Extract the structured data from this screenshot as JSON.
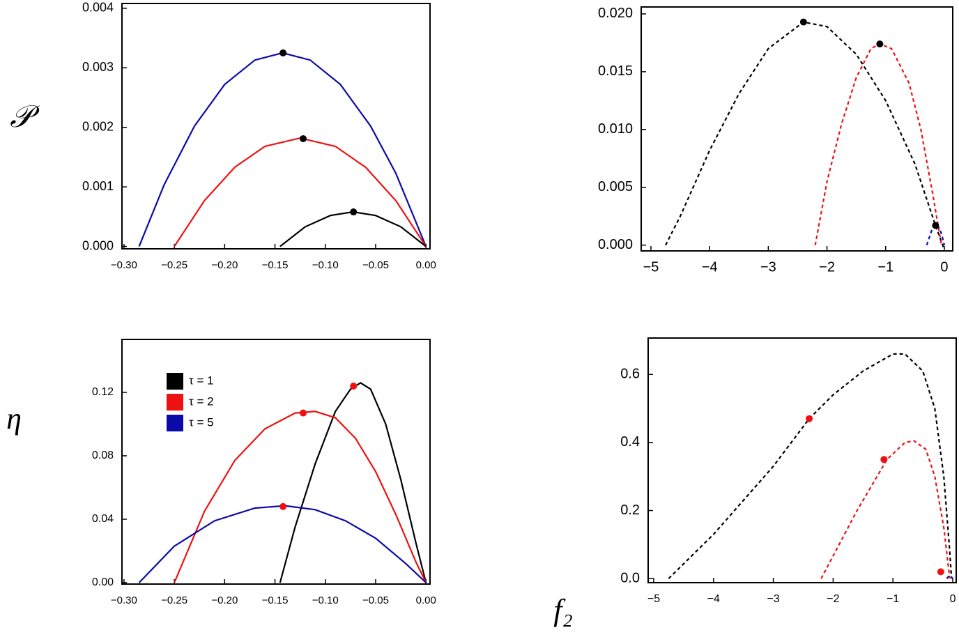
{
  "labels": {
    "y_top": "𝒫",
    "y_bottom": "η",
    "x": "f₂"
  },
  "chart_data": [
    {
      "type": "line",
      "dashed": false,
      "xlim": [
        -0.302,
        0.004
      ],
      "ylim": [
        -4e-05,
        0.00408
      ],
      "xticks": [
        {
          "value": -0.3,
          "label": "−0.30"
        },
        {
          "value": -0.25,
          "label": "−0.25"
        },
        {
          "value": -0.2,
          "label": "−0.20"
        },
        {
          "value": -0.15,
          "label": "−0.15"
        },
        {
          "value": -0.1,
          "label": "−0.10"
        },
        {
          "value": -0.05,
          "label": "−0.05"
        },
        {
          "value": 0,
          "label": "0.00"
        }
      ],
      "yticks": [
        {
          "value": 0,
          "label": "0.000"
        },
        0.001,
        0.002,
        0.003,
        0.004
      ],
      "series": [
        {
          "color": "#0a0aa8",
          "x": [
            -0.285,
            -0.26,
            -0.23,
            -0.2,
            -0.17,
            -0.1425,
            -0.115,
            -0.085,
            -0.055,
            -0.03,
            0
          ],
          "values": [
            0,
            0.00104,
            0.00202,
            0.00272,
            0.00313,
            0.00325,
            0.00313,
            0.00272,
            0.00202,
            0.00123,
            0
          ]
        },
        {
          "color": "#ee1111",
          "x": [
            -0.25,
            -0.22,
            -0.19,
            -0.16,
            -0.125,
            -0.09,
            -0.06,
            -0.03,
            0
          ],
          "values": [
            0,
            0.00077,
            0.00133,
            0.00168,
            0.00182,
            0.00168,
            0.00133,
            0.00077,
            0
          ]
        },
        {
          "color": "#000000",
          "x": [
            -0.145,
            -0.12,
            -0.095,
            -0.0725,
            -0.05,
            -0.025,
            0
          ],
          "values": [
            0,
            0.00033,
            0.00052,
            0.00058,
            0.00052,
            0.00033,
            0
          ]
        }
      ],
      "markers": {
        "color": "#000000",
        "x": [
          -0.142,
          -0.122,
          -0.072
        ],
        "y": [
          0.00325,
          0.00181,
          0.00058
        ]
      }
    },
    {
      "type": "line",
      "dashed": true,
      "xlim": [
        -5.166,
        0.143
      ],
      "ylim": [
        -0.0005,
        0.0206
      ],
      "xticks": [
        {
          "value": -5,
          "label": "−5"
        },
        {
          "value": -4,
          "label": "−4"
        },
        {
          "value": -3,
          "label": "−3"
        },
        {
          "value": -2,
          "label": "−2"
        },
        {
          "value": -1,
          "label": "−1"
        },
        0
      ],
      "yticks": [
        {
          "value": 0,
          "label": "0.000"
        },
        0.005,
        {
          "value": 0.01,
          "label": "0.010"
        },
        0.015,
        {
          "value": 0.02,
          "label": "0.020"
        }
      ],
      "series": [
        {
          "color": "#000000",
          "x": [
            -4.75,
            -4.5,
            -4,
            -3.5,
            -3,
            -2.4,
            -2,
            -1.5,
            -1,
            -0.5,
            -0.15,
            0
          ],
          "values": [
            0,
            0.0025,
            0.0082,
            0.0131,
            0.017,
            0.0193,
            0.0189,
            0.0165,
            0.0125,
            0.007,
            0.0017,
            -0.0004
          ]
        },
        {
          "color": "#ee1111",
          "x": [
            -2.2,
            -2,
            -1.75,
            -1.5,
            -1.25,
            -1.1,
            -0.9,
            -0.6,
            -0.4,
            -0.2,
            -0.05
          ],
          "values": [
            0,
            0.0055,
            0.0105,
            0.0145,
            0.017,
            0.0174,
            0.017,
            0.014,
            0.01,
            0.0045,
            0
          ]
        },
        {
          "color": "#0a0aa8",
          "x": [
            -0.3,
            -0.2,
            -0.12,
            -0.05,
            0
          ],
          "values": [
            0,
            0.0015,
            0.0018,
            0.001,
            0
          ]
        }
      ],
      "markers": {
        "color": "#000000",
        "x": [
          -2.4,
          -1.1,
          -0.15
        ],
        "y": [
          0.0193,
          0.0174,
          0.0017
        ]
      }
    },
    {
      "type": "line",
      "dashed": false,
      "legend": "upper left",
      "xlim": [
        -0.302,
        0.004
      ],
      "ylim": [
        -0.0009,
        0.1534
      ],
      "xticks": [
        {
          "value": -0.3,
          "label": "−0.30"
        },
        {
          "value": -0.25,
          "label": "−0.25"
        },
        {
          "value": -0.2,
          "label": "−0.20"
        },
        {
          "value": -0.15,
          "label": "−0.15"
        },
        {
          "value": -0.1,
          "label": "−0.10"
        },
        {
          "value": -0.05,
          "label": "−0.05"
        },
        {
          "value": 0,
          "label": "0.00"
        }
      ],
      "yticks": [
        {
          "value": 0,
          "label": "0.00"
        },
        0.04,
        0.08,
        0.12
      ],
      "series": [
        {
          "name": "τ = 1",
          "color": "#000000",
          "x": [
            -0.145,
            -0.13,
            -0.11,
            -0.09,
            -0.075,
            -0.065,
            -0.055,
            -0.04,
            -0.025,
            -0.01,
            0
          ],
          "values": [
            0,
            0.035,
            0.075,
            0.108,
            0.122,
            0.126,
            0.122,
            0.1,
            0.065,
            0.025,
            0
          ]
        },
        {
          "name": "τ = 2",
          "color": "#ee1111",
          "x": [
            -0.25,
            -0.22,
            -0.19,
            -0.16,
            -0.13,
            -0.11,
            -0.09,
            -0.07,
            -0.05,
            -0.03,
            -0.01,
            0
          ],
          "values": [
            0,
            0.045,
            0.077,
            0.097,
            0.107,
            0.108,
            0.104,
            0.091,
            0.07,
            0.043,
            0.013,
            0
          ]
        },
        {
          "name": "τ = 5",
          "color": "#0a0aa8",
          "x": [
            -0.285,
            -0.25,
            -0.21,
            -0.17,
            -0.14,
            -0.11,
            -0.08,
            -0.05,
            -0.02,
            0
          ],
          "values": [
            0,
            0.023,
            0.039,
            0.047,
            0.0485,
            0.046,
            0.039,
            0.028,
            0.012,
            0
          ]
        }
      ],
      "markers": {
        "color": "#ee1111",
        "x": [
          -0.072,
          -0.122,
          -0.142
        ],
        "y": [
          0.124,
          0.107,
          0.048
        ]
      }
    },
    {
      "type": "line",
      "dashed": true,
      "xlim": [
        -5.093,
        0.058
      ],
      "ylim": [
        -0.012,
        0.707
      ],
      "xticks": [
        {
          "value": -5,
          "label": "−5"
        },
        {
          "value": -4,
          "label": "−4"
        },
        {
          "value": -3,
          "label": "−3"
        },
        {
          "value": -2,
          "label": "−2"
        },
        {
          "value": -1,
          "label": "−1"
        },
        0
      ],
      "yticks": [
        {
          "value": 0,
          "label": "0.0"
        },
        0.2,
        0.4,
        0.6
      ],
      "series": [
        {
          "color": "#000000",
          "x": [
            -4.75,
            -4,
            -3,
            -2.4,
            -2,
            -1.5,
            -1,
            -0.8,
            -0.5,
            -0.3,
            -0.15,
            -0.05,
            -0.02
          ],
          "values": [
            0,
            0.13,
            0.33,
            0.47,
            0.54,
            0.61,
            0.66,
            0.66,
            0.61,
            0.5,
            0.3,
            0.08,
            0
          ]
        },
        {
          "color": "#ee1111",
          "x": [
            -2.2,
            -1.9,
            -1.6,
            -1.3,
            -1.1,
            -0.8,
            -0.65,
            -0.45,
            -0.3,
            -0.15,
            -0.05
          ],
          "values": [
            0,
            0.1,
            0.2,
            0.29,
            0.35,
            0.4,
            0.405,
            0.38,
            0.3,
            0.15,
            0
          ]
        },
        {
          "color": "#0a0aa8",
          "x": [
            -0.1,
            -0.05,
            0
          ],
          "values": [
            0,
            0.01,
            0
          ]
        }
      ],
      "markers": {
        "color": "#ee1111",
        "x": [
          -2.4,
          -1.15,
          -0.2
        ],
        "y": [
          0.47,
          0.35,
          0.02
        ]
      }
    }
  ]
}
